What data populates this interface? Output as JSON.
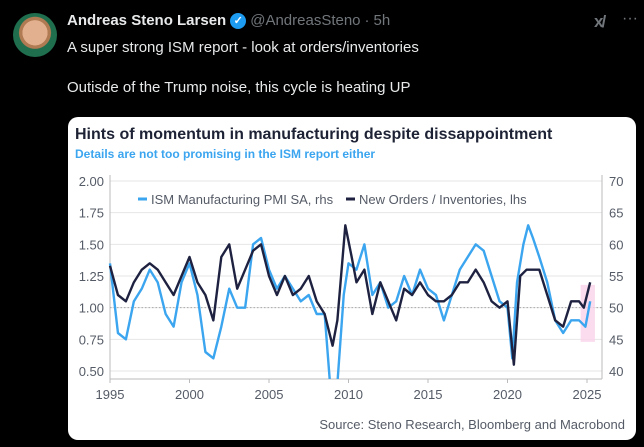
{
  "tweet": {
    "author_name": "Andreas Steno Larsen",
    "handle": "@AndreasSteno",
    "separator": "·",
    "time": "5h",
    "verified_icon": "check-icon",
    "lines": [
      "A super strong ISM report - look at orders/inventories",
      "Outisde of the Trump noise, this cycle is heating UP"
    ],
    "grok_label": "x/",
    "more_label": "···"
  },
  "chart_data": {
    "type": "line",
    "title": "Hints of momentum in manufacturing despite dissappointment",
    "subtitle": "Details are not too promising in the ISM report either",
    "source": "Source: Steno Research, Bloomberg and Macrobond",
    "x_ticks": [
      "1995",
      "2000",
      "2005",
      "2010",
      "2015",
      "2020",
      "2025"
    ],
    "xlim": [
      1995,
      2025.9
    ],
    "y_left_ticks": [
      "2.00",
      "1.75",
      "1.50",
      "1.25",
      "1.00",
      "0.75",
      "0.50"
    ],
    "ylim_left": [
      0.43,
      2.05
    ],
    "y_right_ticks": [
      "70",
      "65",
      "60",
      "55",
      "50",
      "45",
      "40"
    ],
    "ylim_right": [
      38.6,
      71
    ],
    "reference_line_left": 1.0,
    "highlight": {
      "x": [
        2024.6,
        2025.5
      ],
      "y_left": [
        0.73,
        1.18
      ],
      "color": "#f9d3ea"
    },
    "series": [
      {
        "name": "ISM Manufacturing PMI SA, rhs",
        "axis": "right",
        "color": "#3ba5ef",
        "points": [
          [
            1995,
            57
          ],
          [
            1995.5,
            46
          ],
          [
            1996,
            45
          ],
          [
            1996.5,
            51
          ],
          [
            1997,
            53
          ],
          [
            1997.5,
            56
          ],
          [
            1998,
            54
          ],
          [
            1998.5,
            49
          ],
          [
            1999,
            47
          ],
          [
            1999.5,
            54
          ],
          [
            2000,
            57
          ],
          [
            2000.5,
            52
          ],
          [
            2001,
            43
          ],
          [
            2001.5,
            42
          ],
          [
            2002,
            47
          ],
          [
            2002.5,
            53
          ],
          [
            2003,
            50
          ],
          [
            2003.5,
            50
          ],
          [
            2004,
            60
          ],
          [
            2004.5,
            61
          ],
          [
            2005,
            56
          ],
          [
            2005.5,
            53
          ],
          [
            2006,
            55
          ],
          [
            2006.5,
            53
          ],
          [
            2007,
            51
          ],
          [
            2007.5,
            52
          ],
          [
            2008,
            49
          ],
          [
            2008.5,
            49
          ],
          [
            2008.9,
            36
          ],
          [
            2009.3,
            38
          ],
          [
            2009.7,
            52
          ],
          [
            2010,
            57
          ],
          [
            2010.5,
            56
          ],
          [
            2011,
            60
          ],
          [
            2011.5,
            52
          ],
          [
            2012,
            54
          ],
          [
            2012.5,
            50
          ],
          [
            2013,
            51
          ],
          [
            2013.5,
            55
          ],
          [
            2014,
            52
          ],
          [
            2014.5,
            56
          ],
          [
            2015,
            53
          ],
          [
            2015.5,
            52
          ],
          [
            2016,
            48
          ],
          [
            2016.5,
            52
          ],
          [
            2017,
            56
          ],
          [
            2017.5,
            58
          ],
          [
            2018,
            60
          ],
          [
            2018.5,
            59
          ],
          [
            2019,
            55
          ],
          [
            2019.5,
            51
          ],
          [
            2020,
            50
          ],
          [
            2020.3,
            42
          ],
          [
            2020.6,
            54
          ],
          [
            2021,
            60
          ],
          [
            2021.3,
            63
          ],
          [
            2021.6,
            61
          ],
          [
            2022,
            58
          ],
          [
            2022.5,
            54
          ],
          [
            2023,
            48
          ],
          [
            2023.5,
            46
          ],
          [
            2024,
            48
          ],
          [
            2024.5,
            48
          ],
          [
            2024.9,
            47
          ],
          [
            2025.2,
            51
          ]
        ]
      },
      {
        "name": "New Orders / Inventories, lhs",
        "axis": "left",
        "color": "#1e2240",
        "points": [
          [
            1995,
            1.33
          ],
          [
            1995.5,
            1.1
          ],
          [
            1996,
            1.05
          ],
          [
            1996.5,
            1.2
          ],
          [
            1997,
            1.3
          ],
          [
            1997.5,
            1.35
          ],
          [
            1998,
            1.3
          ],
          [
            1998.5,
            1.2
          ],
          [
            1999,
            1.1
          ],
          [
            1999.5,
            1.25
          ],
          [
            2000,
            1.4
          ],
          [
            2000.5,
            1.2
          ],
          [
            2001,
            1.1
          ],
          [
            2001.5,
            0.9
          ],
          [
            2002,
            1.4
          ],
          [
            2002.5,
            1.5
          ],
          [
            2003,
            1.15
          ],
          [
            2003.5,
            1.3
          ],
          [
            2004,
            1.45
          ],
          [
            2004.5,
            1.5
          ],
          [
            2005,
            1.25
          ],
          [
            2005.5,
            1.1
          ],
          [
            2006,
            1.25
          ],
          [
            2006.5,
            1.1
          ],
          [
            2007,
            1.15
          ],
          [
            2007.5,
            1.25
          ],
          [
            2008,
            1.05
          ],
          [
            2008.5,
            0.95
          ],
          [
            2009,
            0.7
          ],
          [
            2009.3,
            0.9
          ],
          [
            2009.8,
            1.65
          ],
          [
            2010.2,
            1.4
          ],
          [
            2010.5,
            1.2
          ],
          [
            2011,
            1.3
          ],
          [
            2011.5,
            0.95
          ],
          [
            2012,
            1.2
          ],
          [
            2012.5,
            1.05
          ],
          [
            2013,
            0.9
          ],
          [
            2013.5,
            1.15
          ],
          [
            2014,
            1.1
          ],
          [
            2014.5,
            1.2
          ],
          [
            2015,
            1.1
          ],
          [
            2015.5,
            1.05
          ],
          [
            2016,
            1.05
          ],
          [
            2016.5,
            1.1
          ],
          [
            2017,
            1.2
          ],
          [
            2017.5,
            1.2
          ],
          [
            2018,
            1.3
          ],
          [
            2018.5,
            1.2
          ],
          [
            2019,
            1.05
          ],
          [
            2019.5,
            1.0
          ],
          [
            2020,
            1.05
          ],
          [
            2020.4,
            0.55
          ],
          [
            2020.8,
            1.25
          ],
          [
            2021.2,
            1.3
          ],
          [
            2021.6,
            1.3
          ],
          [
            2022,
            1.3
          ],
          [
            2022.5,
            1.1
          ],
          [
            2023,
            0.9
          ],
          [
            2023.5,
            0.85
          ],
          [
            2024,
            1.05
          ],
          [
            2024.5,
            1.05
          ],
          [
            2024.8,
            1.0
          ],
          [
            2025.2,
            1.2
          ]
        ]
      }
    ],
    "legend_placement": "top"
  }
}
